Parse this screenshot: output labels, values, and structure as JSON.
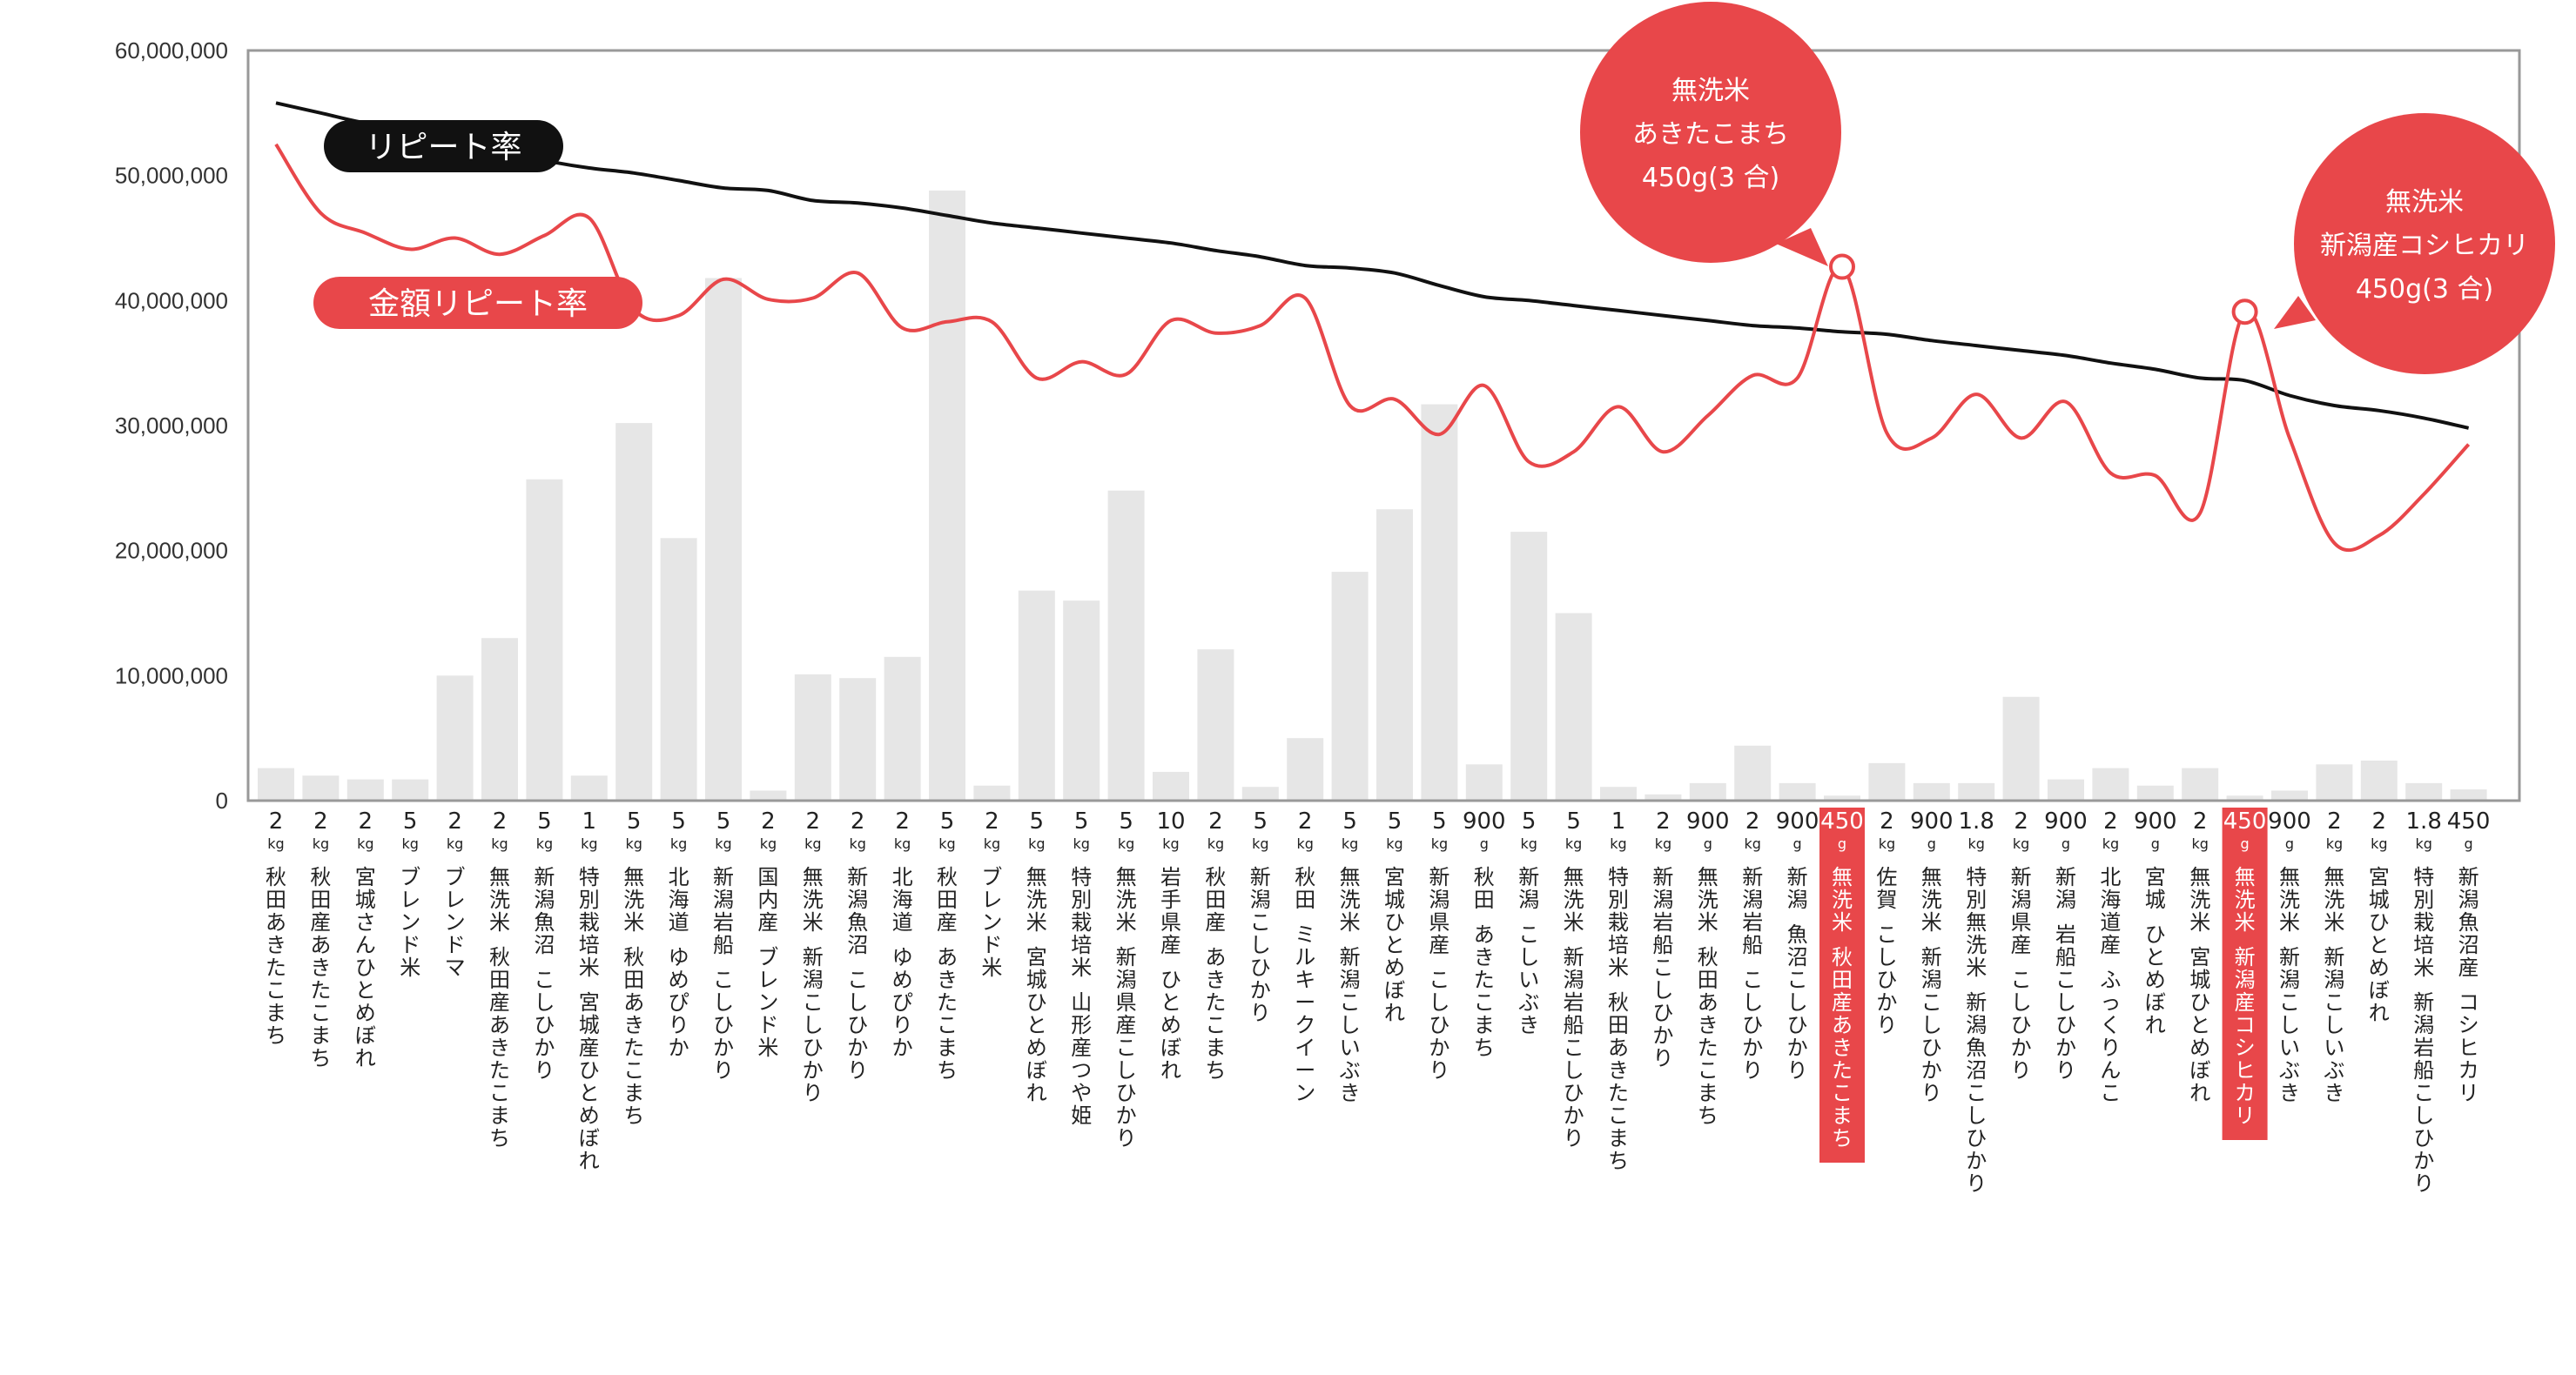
{
  "chart_data": {
    "type": "bar",
    "ylim": [
      0,
      60000000
    ],
    "yticks": [
      "0",
      "10,000,000",
      "20,000,000",
      "30,000,000",
      "40,000,000",
      "50,000,000",
      "60,000,000"
    ],
    "categories": [
      {
        "size": "2",
        "unit": "kg",
        "name": [
          "秋田あきたこまち"
        ]
      },
      {
        "size": "2",
        "unit": "kg",
        "name": [
          "秋田産あきたこまち"
        ]
      },
      {
        "size": "2",
        "unit": "kg",
        "name": [
          "宮城さんひとめぼれ"
        ]
      },
      {
        "size": "5",
        "unit": "kg",
        "name": [
          "ブレンド米"
        ]
      },
      {
        "size": "2",
        "unit": "kg",
        "name": [
          "ブレンドマ"
        ]
      },
      {
        "size": "2",
        "unit": "kg",
        "name": [
          "無洗米",
          "秋田産あきたこまち"
        ]
      },
      {
        "size": "5",
        "unit": "kg",
        "name": [
          "新潟魚沼",
          "こしひかり"
        ]
      },
      {
        "size": "1",
        "unit": "kg",
        "name": [
          "特別栽培米",
          "宮城産ひとめぼれ"
        ]
      },
      {
        "size": "5",
        "unit": "kg",
        "name": [
          "無洗米",
          "秋田あきたこまち"
        ]
      },
      {
        "size": "5",
        "unit": "kg",
        "name": [
          "北海道",
          "ゆめぴりか"
        ]
      },
      {
        "size": "5",
        "unit": "kg",
        "name": [
          "新潟岩船",
          "こしひかり"
        ]
      },
      {
        "size": "2",
        "unit": "kg",
        "name": [
          "国内産",
          "ブレンド米"
        ]
      },
      {
        "size": "2",
        "unit": "kg",
        "name": [
          "無洗米",
          "新潟こしひかり"
        ]
      },
      {
        "size": "2",
        "unit": "kg",
        "name": [
          "新潟魚沼",
          "こしひかり"
        ]
      },
      {
        "size": "2",
        "unit": "kg",
        "name": [
          "北海道",
          "ゆめぴりか"
        ]
      },
      {
        "size": "5",
        "unit": "kg",
        "name": [
          "秋田産",
          "あきたこまち"
        ]
      },
      {
        "size": "2",
        "unit": "kg",
        "name": [
          "ブレンド米"
        ]
      },
      {
        "size": "5",
        "unit": "kg",
        "name": [
          "無洗米",
          "宮城ひとめぼれ"
        ]
      },
      {
        "size": "5",
        "unit": "kg",
        "name": [
          "特別栽培米",
          "山形産つや姫"
        ]
      },
      {
        "size": "5",
        "unit": "kg",
        "name": [
          "無洗米",
          "新潟県産こしひかり"
        ]
      },
      {
        "size": "10",
        "unit": "kg",
        "name": [
          "岩手県産",
          "ひとめぼれ"
        ]
      },
      {
        "size": "2",
        "unit": "kg",
        "name": [
          "秋田産",
          "あきたこまち"
        ]
      },
      {
        "size": "5",
        "unit": "kg",
        "name": [
          "新潟こしひかり"
        ]
      },
      {
        "size": "2",
        "unit": "kg",
        "name": [
          "秋田",
          "ミルキークイーン"
        ]
      },
      {
        "size": "5",
        "unit": "kg",
        "name": [
          "無洗米",
          "新潟こしいぶき"
        ]
      },
      {
        "size": "5",
        "unit": "kg",
        "name": [
          "宮城ひとめぼれ"
        ]
      },
      {
        "size": "5",
        "unit": "kg",
        "name": [
          "新潟県産",
          "こしひかり"
        ]
      },
      {
        "size": "900",
        "unit": "g",
        "name": [
          "秋田",
          "あきたこまち"
        ]
      },
      {
        "size": "5",
        "unit": "kg",
        "name": [
          "新潟",
          "こしいぶき"
        ]
      },
      {
        "size": "5",
        "unit": "kg",
        "name": [
          "無洗米",
          "新潟岩船こしひかり"
        ]
      },
      {
        "size": "1",
        "unit": "kg",
        "name": [
          "特別栽培米",
          "秋田あきたこまち"
        ]
      },
      {
        "size": "2",
        "unit": "kg",
        "name": [
          "新潟岩船こしひかり"
        ]
      },
      {
        "size": "900",
        "unit": "g",
        "name": [
          "無洗米",
          "秋田あきたこまち"
        ]
      },
      {
        "size": "2",
        "unit": "kg",
        "name": [
          "新潟岩船",
          "こしひかり"
        ]
      },
      {
        "size": "900",
        "unit": "g",
        "name": [
          "新潟",
          "魚沼こしひかり"
        ]
      },
      {
        "size": "450",
        "unit": "g",
        "name": [
          "無洗米",
          "秋田産あきたこまち"
        ],
        "highlight": true
      },
      {
        "size": "2",
        "unit": "kg",
        "name": [
          "佐賀",
          "こしひかり"
        ]
      },
      {
        "size": "900",
        "unit": "g",
        "name": [
          "無洗米",
          "新潟こしひかり"
        ]
      },
      {
        "size": "1.8",
        "unit": "kg",
        "name": [
          "特別無洗米",
          "新潟魚沼こしひかり"
        ]
      },
      {
        "size": "2",
        "unit": "kg",
        "name": [
          "新潟県産",
          "こしひかり"
        ]
      },
      {
        "size": "900",
        "unit": "g",
        "name": [
          "新潟",
          "岩船こしひかり"
        ]
      },
      {
        "size": "2",
        "unit": "kg",
        "name": [
          "北海道産",
          "ふっくりんこ"
        ]
      },
      {
        "size": "900",
        "unit": "g",
        "name": [
          "宮城",
          "ひとめぼれ"
        ]
      },
      {
        "size": "2",
        "unit": "kg",
        "name": [
          "無洗米",
          "宮城ひとめぼれ"
        ]
      },
      {
        "size": "450",
        "unit": "g",
        "name": [
          "無洗米",
          "新潟産コシヒカリ"
        ],
        "highlight": true
      },
      {
        "size": "900",
        "unit": "g",
        "name": [
          "無洗米",
          "新潟こしいぶき"
        ]
      },
      {
        "size": "2",
        "unit": "kg",
        "name": [
          "無洗米",
          "新潟こしいぶき"
        ]
      },
      {
        "size": "2",
        "unit": "kg",
        "name": [
          "宮城ひとめぼれ"
        ]
      },
      {
        "size": "1.8",
        "unit": "kg",
        "name": [
          "特別栽培米",
          "新潟岩船こしひかり"
        ]
      },
      {
        "size": "450",
        "unit": "g",
        "name": [
          "新潟魚沼産",
          "コシヒカリ"
        ]
      }
    ],
    "series": [
      {
        "name": "",
        "kind": "bar",
        "values": [
          2600000,
          2000000,
          1700000,
          1700000,
          10000000,
          13000000,
          25700000,
          2000000,
          30200000,
          21000000,
          41800000,
          800000,
          10100000,
          9800000,
          11500000,
          48800000,
          1200000,
          16800000,
          16000000,
          24800000,
          2300000,
          12100000,
          1100000,
          5000000,
          18300000,
          23300000,
          31700000,
          2900000,
          21500000,
          15000000,
          1100000,
          500000,
          1400000,
          4400000,
          1400000,
          400000,
          3000000,
          1400000,
          1400000,
          8300000,
          1700000,
          2600000,
          1200000,
          2600000,
          400000,
          800000,
          2900000,
          3200000,
          1400000,
          900000
        ]
      },
      {
        "name": "リピート率",
        "kind": "line",
        "values": [
          55800000,
          55000000,
          54200000,
          53800000,
          53000000,
          52000000,
          51200000,
          50600000,
          50200000,
          49600000,
          49000000,
          48800000,
          48000000,
          47800000,
          47400000,
          46800000,
          46200000,
          45800000,
          45400000,
          45000000,
          44600000,
          44000000,
          43500000,
          42800000,
          42600000,
          42200000,
          41200000,
          40300000,
          40000000,
          39600000,
          39200000,
          38800000,
          38400000,
          38000000,
          37800000,
          37500000,
          37300000,
          36800000,
          36400000,
          36000000,
          35600000,
          35000000,
          34500000,
          33800000,
          33600000,
          32400000,
          31600000,
          31200000,
          30600000,
          29800000
        ]
      },
      {
        "name": "金額リピート率",
        "kind": "line",
        "values": [
          52500000,
          47000000,
          45400000,
          44100000,
          45000000,
          43700000,
          45200000,
          46600000,
          39300000,
          38800000,
          41700000,
          40100000,
          40200000,
          42200000,
          37800000,
          38300000,
          38300000,
          33800000,
          35100000,
          34100000,
          38400000,
          37400000,
          38000000,
          40200000,
          31600000,
          32100000,
          29300000,
          33200000,
          27100000,
          27900000,
          31500000,
          27900000,
          30800000,
          34000000,
          33800000,
          42700000,
          29400000,
          29000000,
          32500000,
          29000000,
          31900000,
          26200000,
          26000000,
          23000000,
          39100000,
          29000000,
          20600000,
          21200000,
          24500000,
          28500000
        ]
      }
    ],
    "legend": [
      {
        "label": "リピート率",
        "color": "#111111"
      },
      {
        "label": "金額リピート率",
        "color": "#e8474a"
      }
    ],
    "callouts": [
      {
        "index": 35,
        "lines": [
          "無洗米",
          "あきたこまち",
          "450g(3 合)"
        ]
      },
      {
        "index": 44,
        "lines": [
          "無洗米",
          "新潟産コシヒカリ",
          "450g(3 合)"
        ]
      }
    ],
    "colors": {
      "bar": "#e6e6e6",
      "repeat_line": "#111111",
      "amount_line": "#e8474a",
      "highlight": "#e8474a",
      "frame": "#999999"
    }
  }
}
